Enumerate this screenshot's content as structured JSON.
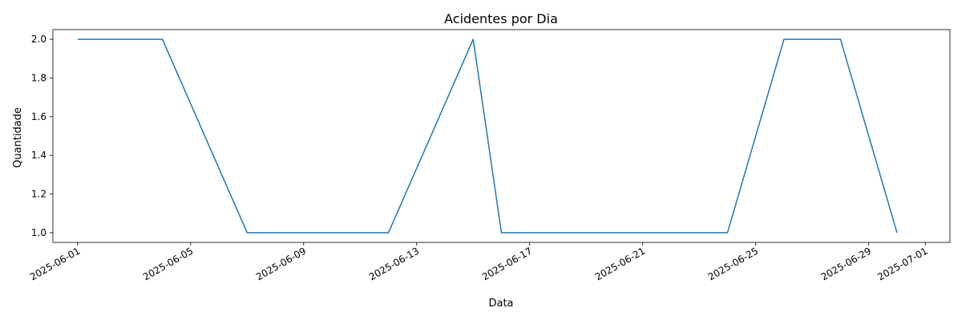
{
  "chart_data": {
    "type": "line",
    "title": "Acidentes por Dia",
    "xlabel": "Data",
    "ylabel": "Quantidade",
    "grid": false,
    "x": [
      "2025-06-01",
      "2025-06-04",
      "2025-06-07",
      "2025-06-12",
      "2025-06-15",
      "2025-06-16",
      "2025-06-24",
      "2025-06-26",
      "2025-06-28",
      "2025-06-30"
    ],
    "series": [
      {
        "values": [
          2,
          2,
          1,
          1,
          2,
          1,
          1,
          2,
          2,
          1
        ],
        "color": "#1f77b4"
      }
    ],
    "xlim": [
      "2025-05-31T03:00",
      "2025-07-01T21:00"
    ],
    "ylim": [
      0.95,
      2.05
    ],
    "xticks": [
      "2025-06-01",
      "2025-06-05",
      "2025-06-09",
      "2025-06-13",
      "2025-06-17",
      "2025-06-21",
      "2025-06-25",
      "2025-06-29",
      "2025-07-01"
    ],
    "yticks": [
      "1.0",
      "1.2",
      "1.4",
      "1.6",
      "1.8",
      "2.0"
    ]
  }
}
